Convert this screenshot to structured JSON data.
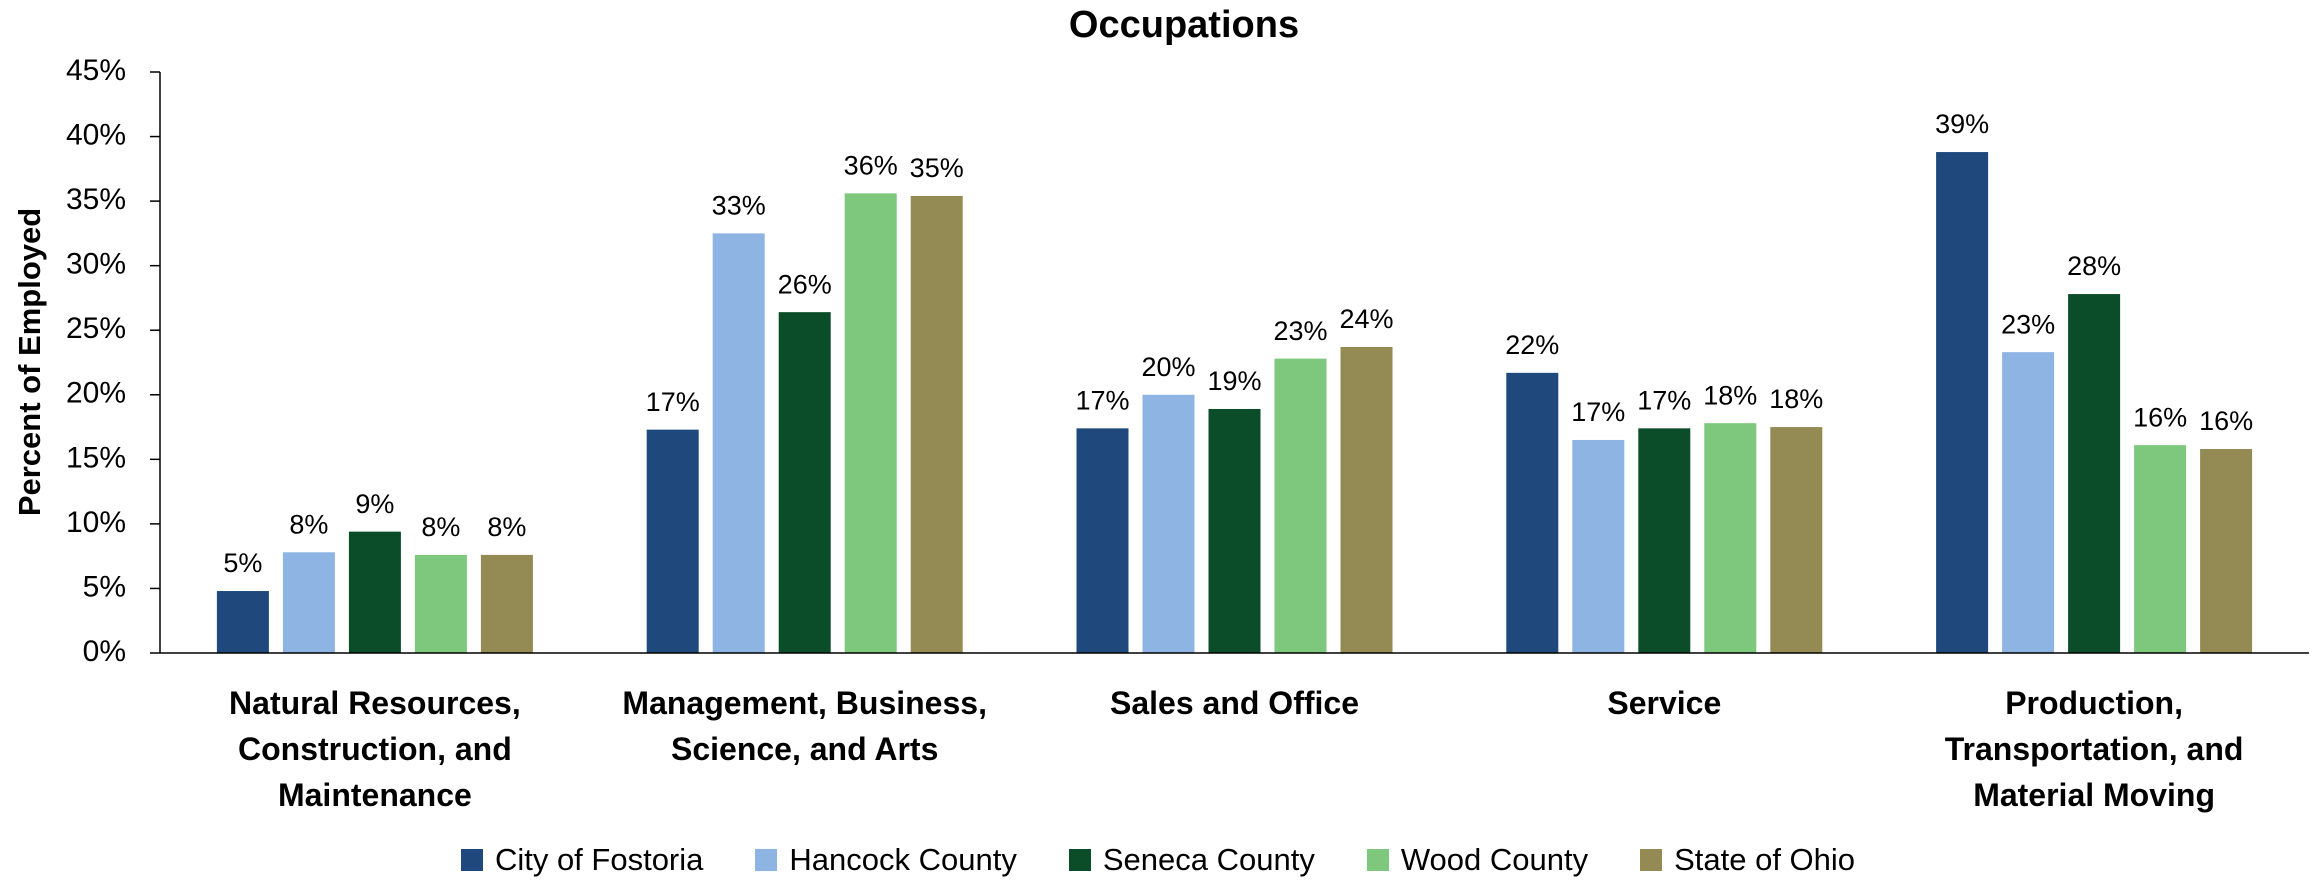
{
  "chart_data": {
    "type": "bar",
    "title": "Occupations",
    "y_label": "Percent of Employed",
    "categories": [
      "Natural Resources, Construction, and Maintenance",
      "Management, Business, Science, and Arts",
      "Sales and Office",
      "Service",
      "Production, Transportation, and Material Moving"
    ],
    "series": [
      {
        "name": "City of Fostoria",
        "color": "#1f497d",
        "values": [
          4.8,
          17.3,
          17.4,
          21.7,
          38.8
        ],
        "value_labels": [
          "5%",
          "17%",
          "17%",
          "22%",
          "39%"
        ]
      },
      {
        "name": "Hancock County",
        "color": "#8db4e2",
        "values": [
          7.8,
          32.5,
          20.0,
          16.5,
          23.3
        ],
        "value_labels": [
          "8%",
          "33%",
          "20%",
          "17%",
          "23%"
        ]
      },
      {
        "name": "Seneca County",
        "color": "#0b4d29",
        "values": [
          9.4,
          26.4,
          18.9,
          17.4,
          27.8
        ],
        "value_labels": [
          "9%",
          "26%",
          "19%",
          "17%",
          "28%"
        ]
      },
      {
        "name": "Wood County",
        "color": "#7dc87c",
        "values": [
          7.6,
          35.6,
          22.8,
          17.8,
          16.1
        ],
        "value_labels": [
          "8%",
          "36%",
          "23%",
          "18%",
          "16%"
        ]
      },
      {
        "name": "State of Ohio",
        "color": "#948a54",
        "values": [
          7.6,
          35.4,
          23.7,
          17.5,
          15.8
        ],
        "value_labels": [
          "8%",
          "35%",
          "24%",
          "18%",
          "16%"
        ]
      }
    ],
    "ylim": [
      0,
      45
    ],
    "yticks": [
      {
        "value": 0,
        "label": "0%"
      },
      {
        "value": 5,
        "label": "5%"
      },
      {
        "value": 10,
        "label": "10%"
      },
      {
        "value": 15,
        "label": "15%"
      },
      {
        "value": 20,
        "label": "20%"
      },
      {
        "value": 25,
        "label": "25%"
      },
      {
        "value": 30,
        "label": "30%"
      },
      {
        "value": 35,
        "label": "35%"
      },
      {
        "value": 40,
        "label": "40%"
      },
      {
        "value": 45,
        "label": "45%"
      }
    ],
    "grid": false,
    "legend": "bottom"
  }
}
